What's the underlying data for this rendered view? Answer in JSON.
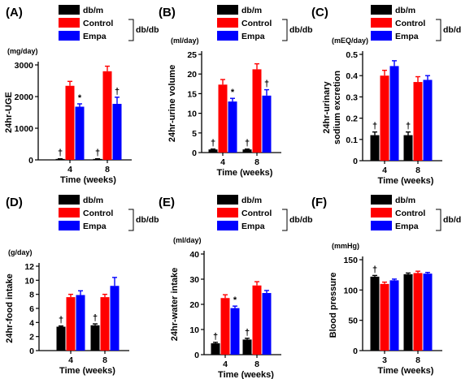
{
  "colors": {
    "db_m": "#000000",
    "control": "#ff0000",
    "empa": "#0000ff"
  },
  "legend": {
    "items": [
      {
        "key": "db_m",
        "label": "db/m"
      },
      {
        "key": "control",
        "label": "Control"
      },
      {
        "key": "empa",
        "label": "Empa"
      }
    ],
    "group_label": "db/db"
  },
  "chart_data": [
    {
      "panel": "(A)",
      "type": "bar",
      "unit": "(mg/day)",
      "ylabel": "24hr-UGE",
      "xlabel": "Time (weeks)",
      "categories": [
        "4",
        "8"
      ],
      "ylim": [
        0,
        3000
      ],
      "yticks": [
        "0",
        "1000",
        "2000",
        "3000"
      ],
      "tickvals": [
        0,
        1000,
        2000,
        3000
      ],
      "series": [
        {
          "key": "db_m",
          "name": "db/m",
          "values": [
            30,
            30
          ],
          "errors": [
            5,
            5
          ],
          "marks": [
            "†",
            "†"
          ]
        },
        {
          "key": "control",
          "name": "Control",
          "values": [
            2340,
            2800
          ],
          "errors": [
            140,
            160
          ],
          "marks": [
            "",
            ""
          ]
        },
        {
          "key": "empa",
          "name": "Empa",
          "values": [
            1680,
            1770
          ],
          "errors": [
            90,
            210
          ],
          "marks": [
            "*",
            "†"
          ]
        }
      ]
    },
    {
      "panel": "(B)",
      "type": "bar",
      "unit": "(ml/day)",
      "ylabel": "24hr-urine volume",
      "xlabel": "Time (weeks)",
      "categories": [
        "4",
        "8"
      ],
      "ylim": [
        0,
        25
      ],
      "yticks": [
        "0",
        "5",
        "10",
        "15",
        "20",
        "25"
      ],
      "tickvals": [
        0,
        5,
        10,
        15,
        20,
        25
      ],
      "series": [
        {
          "key": "db_m",
          "name": "db/m",
          "values": [
            0.8,
            0.8
          ],
          "errors": [
            0.1,
            0.1
          ],
          "marks": [
            "†",
            "†"
          ]
        },
        {
          "key": "control",
          "name": "Control",
          "values": [
            17.3,
            21.2
          ],
          "errors": [
            1.3,
            1.4
          ],
          "marks": [
            "",
            ""
          ]
        },
        {
          "key": "empa",
          "name": "Empa",
          "values": [
            13.0,
            14.5
          ],
          "errors": [
            0.8,
            1.5
          ],
          "marks": [
            "*",
            "†"
          ]
        }
      ]
    },
    {
      "panel": "(C)",
      "type": "bar",
      "unit": "(mEQ/day)",
      "ylabel": "24hr-urinary sodium excretion",
      "xlabel": "Time (weeks)",
      "categories": [
        "4",
        "8"
      ],
      "ylim": [
        0,
        0.5
      ],
      "yticks": [
        "0",
        "0.1",
        "0.2",
        "0.3",
        "0.4",
        "0.5"
      ],
      "tickvals": [
        0,
        0.1,
        0.2,
        0.3,
        0.4,
        0.5
      ],
      "series": [
        {
          "key": "db_m",
          "name": "db/m",
          "values": [
            0.12,
            0.12
          ],
          "errors": [
            0.015,
            0.015
          ],
          "marks": [
            "†",
            "†"
          ]
        },
        {
          "key": "control",
          "name": "Control",
          "values": [
            0.4,
            0.37
          ],
          "errors": [
            0.025,
            0.025
          ],
          "marks": [
            "",
            ""
          ]
        },
        {
          "key": "empa",
          "name": "Empa",
          "values": [
            0.445,
            0.38
          ],
          "errors": [
            0.025,
            0.02
          ],
          "marks": [
            "",
            ""
          ]
        }
      ]
    },
    {
      "panel": "(D)",
      "type": "bar",
      "unit": "(g/day)",
      "ylabel": "24hr-food intake",
      "xlabel": "Time (weeks)",
      "categories": [
        "4",
        "8"
      ],
      "ylim": [
        0,
        12
      ],
      "yticks": [
        "0",
        "2",
        "4",
        "6",
        "8",
        "10",
        "12"
      ],
      "tickvals": [
        0,
        2,
        4,
        6,
        8,
        10,
        12
      ],
      "series": [
        {
          "key": "db_m",
          "name": "db/m",
          "values": [
            3.4,
            3.6
          ],
          "errors": [
            0.1,
            0.2
          ],
          "marks": [
            "†",
            "†"
          ]
        },
        {
          "key": "control",
          "name": "Control",
          "values": [
            7.6,
            7.6
          ],
          "errors": [
            0.4,
            0.4
          ],
          "marks": [
            "",
            ""
          ]
        },
        {
          "key": "empa",
          "name": "Empa",
          "values": [
            7.9,
            9.2
          ],
          "errors": [
            0.6,
            1.2
          ],
          "marks": [
            "",
            ""
          ]
        }
      ]
    },
    {
      "panel": "(E)",
      "type": "bar",
      "unit": "(ml/day)",
      "ylabel": "24hr-water intake",
      "xlabel": "Time (weeks)",
      "categories": [
        "4",
        "8"
      ],
      "ylim": [
        0,
        40
      ],
      "yticks": [
        "0",
        "10",
        "20",
        "30",
        "40"
      ],
      "tickvals": [
        0,
        10,
        20,
        30,
        40
      ],
      "series": [
        {
          "key": "db_m",
          "name": "db/m",
          "values": [
            4.5,
            6.0
          ],
          "errors": [
            0.4,
            0.5
          ],
          "marks": [
            "†",
            "†"
          ]
        },
        {
          "key": "control",
          "name": "Control",
          "values": [
            22.5,
            27.5
          ],
          "errors": [
            1.3,
            1.5
          ],
          "marks": [
            "",
            ""
          ]
        },
        {
          "key": "empa",
          "name": "Empa",
          "values": [
            18.5,
            24.5
          ],
          "errors": [
            0.8,
            1.0
          ],
          "marks": [
            "*",
            ""
          ]
        }
      ]
    },
    {
      "panel": "(F)",
      "type": "bar",
      "unit": "(mmHg)",
      "ylabel": "Blood pressure",
      "xlabel": "Time (weeks)",
      "categories": [
        "3",
        "8"
      ],
      "ylim": [
        0,
        150
      ],
      "yticks": [
        "0",
        "50",
        "100",
        "150"
      ],
      "tickvals": [
        0,
        50,
        100,
        150
      ],
      "series": [
        {
          "key": "db_m",
          "name": "db/m",
          "values": [
            122,
            126
          ],
          "errors": [
            2,
            2
          ],
          "marks": [
            "†",
            ""
          ]
        },
        {
          "key": "control",
          "name": "Control",
          "values": [
            110,
            128
          ],
          "errors": [
            3,
            3
          ],
          "marks": [
            "",
            ""
          ]
        },
        {
          "key": "empa",
          "name": "Empa",
          "values": [
            116,
            127
          ],
          "errors": [
            2,
            2
          ],
          "marks": [
            "",
            ""
          ]
        }
      ]
    }
  ]
}
